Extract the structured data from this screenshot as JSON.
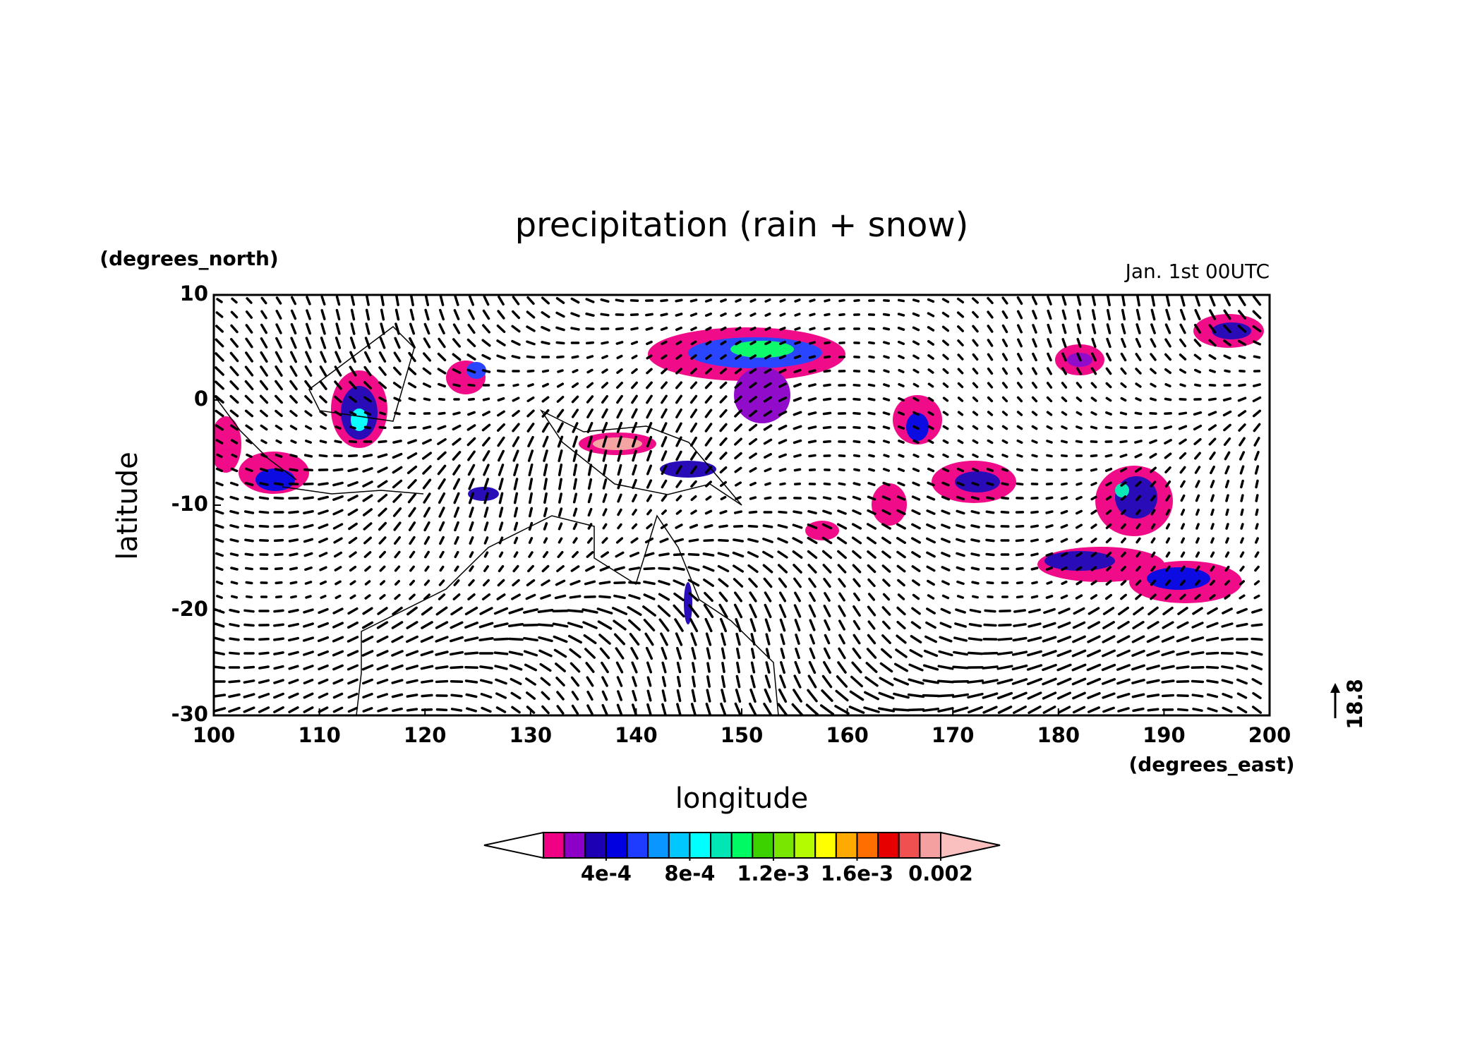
{
  "chart_data": {
    "type": "map",
    "title": "precipitation (rain + snow)",
    "subtitle": "Jan. 1st 00UTC",
    "x_label": "longitude",
    "x_unit": "(degrees_east)",
    "y_label": "latitude",
    "y_unit": "(degrees_north)",
    "xlim": [
      100,
      200
    ],
    "xticks": [
      100,
      110,
      120,
      130,
      140,
      150,
      160,
      170,
      180,
      190,
      200
    ],
    "ylim": [
      -30,
      10
    ],
    "yticks": [
      -30,
      -20,
      -10,
      0,
      10
    ],
    "vector_reference": 18.8,
    "colorbar": {
      "lim": [
        0.0001,
        0.002
      ],
      "ticks": [
        {
          "value": 0.0004,
          "label": "4e-4"
        },
        {
          "value": 0.0008,
          "label": "8e-4"
        },
        {
          "value": 0.0012,
          "label": "1.2e-3"
        },
        {
          "value": 0.0016,
          "label": "1.6e-3"
        },
        0.002
      ],
      "colors": [
        "#f00082",
        "#8c00c8",
        "#1e00b4",
        "#0000e1",
        "#1e3cff",
        "#0a96ff",
        "#00c8ff",
        "#00ffff",
        "#00e6b4",
        "#00fa64",
        "#3cd200",
        "#78e600",
        "#b4fa00",
        "#ffff00",
        "#ffaa00",
        "#ff6e00",
        "#e60000",
        "#f05050",
        "#f5a0a0"
      ],
      "under_color": "#ffffff",
      "over_color": "#fac0c0"
    }
  }
}
